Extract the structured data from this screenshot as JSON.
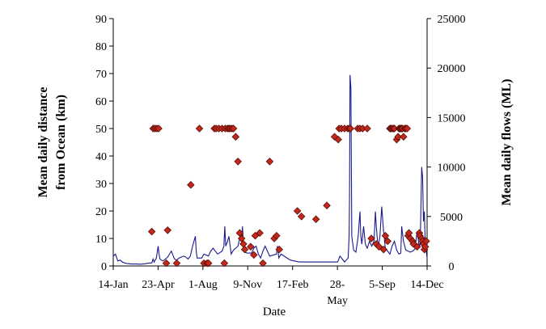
{
  "chart_data": {
    "type": "scatter+line",
    "xlabel": "Date",
    "ylabel_left": "Mean daily distance from Ocean (km)",
    "ylabel_right": "Mean daily flows (ML)",
    "ylim_left": [
      0,
      90
    ],
    "ylim_right": [
      0,
      25000
    ],
    "yticks_left": [
      "0",
      "10",
      "20",
      "30",
      "40",
      "50",
      "60",
      "70",
      "80",
      "90"
    ],
    "yticks_right": [
      "0",
      "5000",
      "10000",
      "15000",
      "20000",
      "25000"
    ],
    "xticks": [
      "14-Jan",
      "23-Apr",
      "1-Aug",
      "9-Nov",
      "17-Feb",
      "28-May",
      "5-Sep",
      "14-Dec"
    ],
    "grid": false,
    "legend": "none",
    "colors": {
      "distance_markers": "#c4281c",
      "flow_line": "#1a1a8c"
    },
    "series": [
      {
        "kind": "line",
        "axis": "right",
        "x_days": [
          0,
          5,
          10,
          15,
          20,
          25,
          30,
          40,
          50,
          60,
          70,
          80,
          85,
          88,
          90,
          95,
          99,
          101,
          103,
          106,
          110,
          120,
          128,
          135,
          140,
          145,
          155,
          160,
          165,
          170,
          175,
          181,
          183,
          185,
          190,
          195,
          200,
          210,
          215,
          220,
          230,
          240,
          244,
          246,
          248,
          252,
          255,
          260,
          265,
          270,
          275,
          280,
          283,
          285,
          287,
          290,
          295,
          300,
          305,
          310,
          315,
          320,
          325,
          330,
          335,
          345,
          360,
          362,
          365,
          370,
          380,
          390,
          400,
          410,
          420,
          440,
          460,
          480,
          495,
          500,
          510,
          518,
          520,
          521,
          522,
          524,
          526,
          530,
          535,
          540,
          544,
          546,
          548,
          552,
          556,
          560,
          565,
          570,
          575,
          578,
          580,
          584,
          588,
          592,
          596,
          600,
          605,
          610,
          615,
          620,
          625,
          630,
          634,
          636,
          640,
          645,
          650,
          655,
          660,
          665,
          670,
          675,
          677,
          680,
          682,
          684,
          686,
          688,
          690,
          692
        ],
        "flows": [
          1000,
          1200,
          500,
          600,
          400,
          300,
          250,
          200,
          200,
          180,
          220,
          300,
          300,
          700,
          400,
          800,
          2000,
          1200,
          700,
          600,
          500,
          900,
          1500,
          700,
          600,
          800,
          1000,
          900,
          700,
          1000,
          2000,
          3000,
          1500,
          800,
          800,
          800,
          1200,
          1000,
          1500,
          1800,
          1200,
          1500,
          2000,
          4000,
          2000,
          2500,
          3000,
          1200,
          1600,
          1800,
          2000,
          3000,
          2500,
          4000,
          2000,
          1400,
          1300,
          1300,
          1300,
          1800,
          2000,
          1200,
          800,
          1500,
          2000,
          1000,
          1200,
          2000,
          800,
          1200,
          900,
          600,
          500,
          400,
          400,
          400,
          400,
          400,
          400,
          1000,
          400,
          800,
          3000,
          7000,
          19300,
          18000,
          3000,
          1600,
          1400,
          3000,
          5500,
          3000,
          2200,
          4000,
          2200,
          1800,
          2500,
          2000,
          2500,
          5500,
          4000,
          1800,
          3000,
          6000,
          3500,
          1800,
          1500,
          1200,
          2000,
          2500,
          1600,
          1200,
          1300,
          4000,
          2500,
          1600,
          1500,
          1400,
          1500,
          1700,
          3500,
          1800,
          2600,
          10000,
          9000,
          4500,
          5500,
          2000,
          1500,
          800
        ]
      },
      {
        "kind": "scatter",
        "axis": "left",
        "x_days": [
          85,
          120,
          140,
          88,
          92,
          96,
          100,
          117,
          171,
          190,
          200,
          207,
          210,
          223,
          227,
          233,
          240,
          245,
          247,
          252,
          255,
          258,
          262,
          265,
          270,
          275,
          279,
          283,
          287,
          290,
          303,
          310,
          313,
          323,
          330,
          345,
          355,
          360,
          366,
          406,
          415,
          447,
          471,
          488,
          496,
          498,
          503,
          510,
          517,
          521,
          523,
          539,
          544,
          550,
          560,
          569,
          580,
          586,
          596,
          600,
          605,
          610,
          612,
          615,
          618,
          620,
          625,
          628,
          630,
          632,
          634,
          636,
          638,
          640,
          643,
          645,
          648,
          650,
          652,
          655,
          660,
          662,
          670,
          675,
          676,
          680,
          682,
          684,
          686,
          688,
          690
        ],
        "distance": [
          12.5,
          13,
          1,
          50,
          50,
          50,
          50,
          1,
          29.5,
          50,
          1,
          1,
          1,
          50,
          50,
          50,
          50,
          1,
          50,
          50,
          50,
          50,
          50,
          50,
          47,
          38,
          12,
          10,
          8,
          6,
          7,
          4,
          11,
          12,
          1,
          38,
          10,
          11,
          6,
          20,
          18,
          17,
          22,
          47,
          46,
          50,
          50,
          50,
          50,
          50,
          50,
          50,
          50,
          50,
          50,
          10,
          8,
          7,
          6,
          11,
          9,
          50,
          50,
          50,
          50,
          50,
          46,
          47,
          50,
          50,
          50,
          50,
          50,
          47,
          50,
          50,
          50,
          11,
          12,
          10,
          9,
          8,
          7,
          12,
          11,
          10,
          9,
          8,
          6,
          7,
          9
        ]
      }
    ]
  }
}
